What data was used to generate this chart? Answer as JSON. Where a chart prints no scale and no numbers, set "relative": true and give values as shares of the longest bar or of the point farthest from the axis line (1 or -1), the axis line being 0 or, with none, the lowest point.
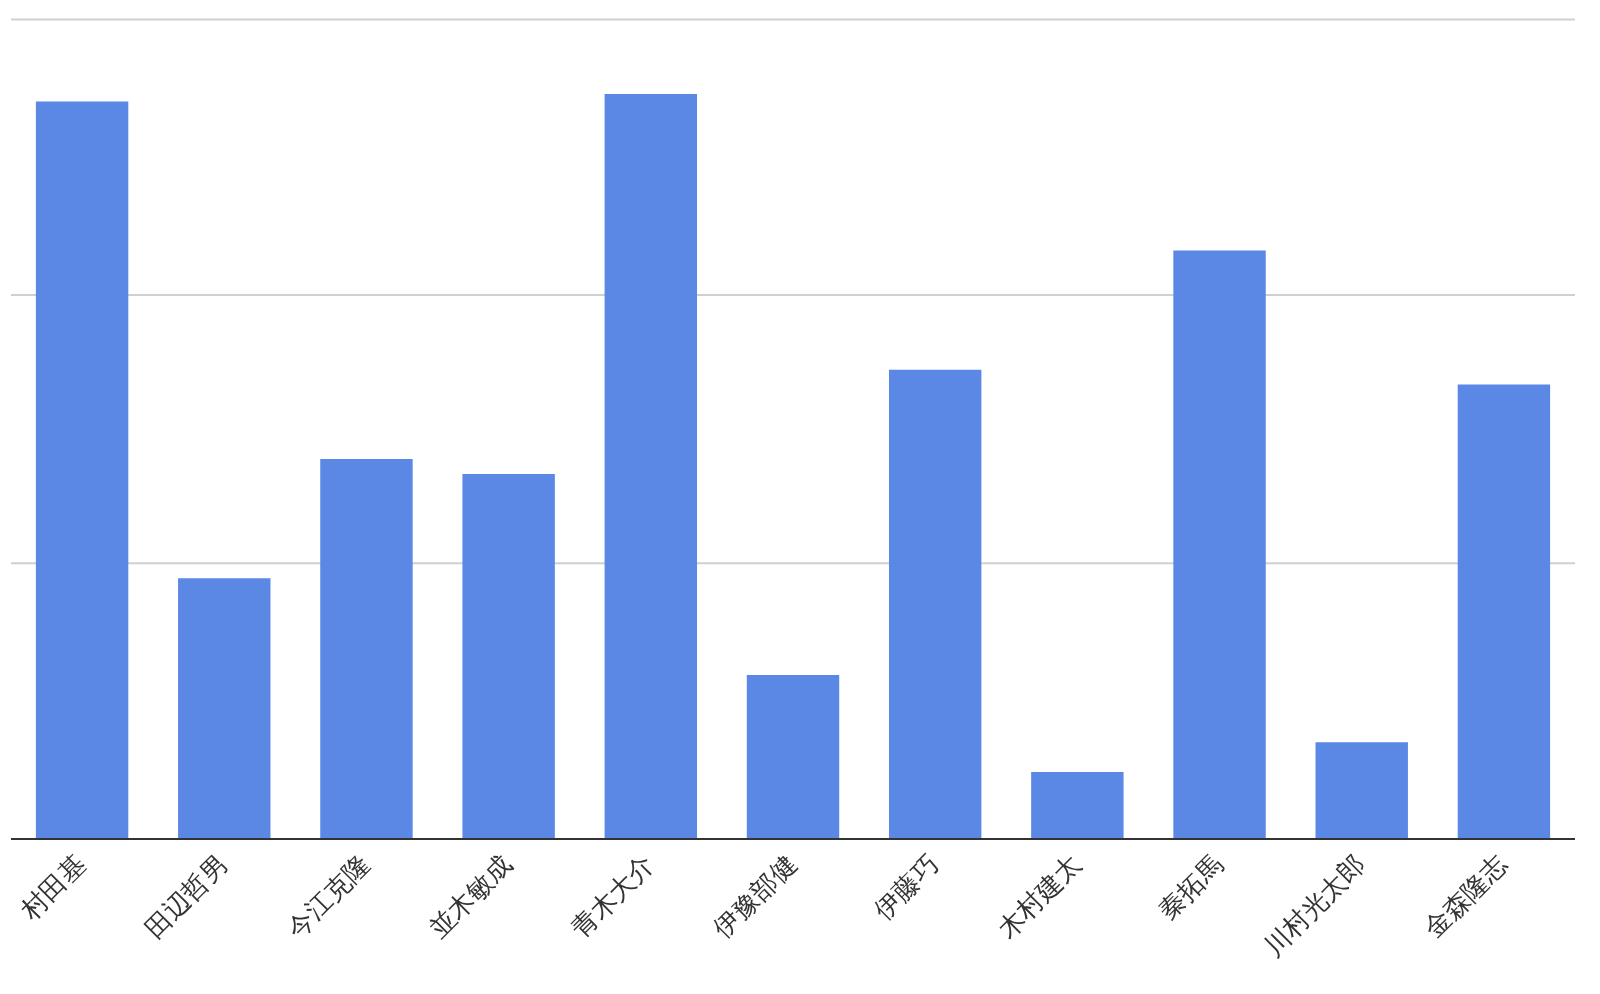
{
  "chart_data": {
    "type": "bar",
    "relative": true,
    "color": "#5b87e5",
    "categories": [
      "村田基",
      "田辺哲男",
      "今江克隆",
      "並木敏成",
      "青木大介",
      "伊豫部健",
      "伊藤巧",
      "木村建太",
      "秦拓馬",
      "川村光太郎",
      "金森隆志"
    ],
    "values": [
      0.99,
      0.35,
      0.51,
      0.49,
      1,
      0.22,
      0.63,
      0.09,
      0.79,
      0.13,
      0.61
    ],
    "ref_lines": [
      {
        "axis": "y",
        "value": 0.37,
        "color": "#d0d0d0"
      },
      {
        "axis": "y",
        "value": 0.73,
        "color": "#d0d0d0"
      },
      {
        "axis": "y",
        "value": 1.1,
        "color": "#d0d0d0"
      }
    ]
  }
}
